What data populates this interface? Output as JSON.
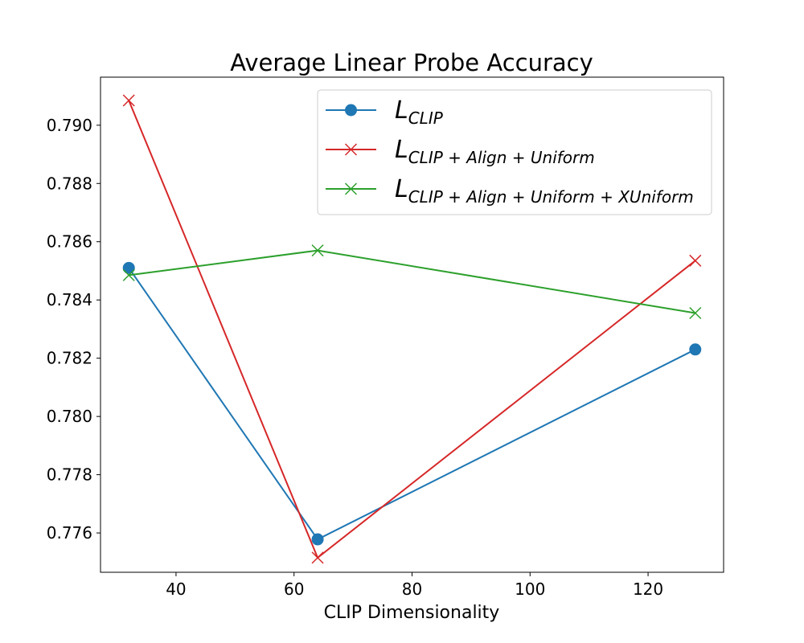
{
  "chart_data": {
    "type": "line",
    "title": "Average Linear Probe Accuracy",
    "xlabel": "CLIP Dimensionality",
    "ylabel": "",
    "xlim": [
      27.2,
      132.8
    ],
    "ylim": [
      0.77465,
      0.79165
    ],
    "xticks": [
      40,
      60,
      80,
      100,
      120
    ],
    "xtick_labels": [
      "40",
      "60",
      "80",
      "100",
      "120"
    ],
    "yticks": [
      0.776,
      0.778,
      0.78,
      0.782,
      0.784,
      0.786,
      0.788,
      0.79
    ],
    "ytick_labels": [
      "0.776",
      "0.778",
      "0.780",
      "0.782",
      "0.784",
      "0.786",
      "0.788",
      "0.790"
    ],
    "grid": false,
    "legend_position": "top-right",
    "x": [
      32,
      64,
      128
    ],
    "series": [
      {
        "name_main": "L",
        "name_sub": "CLIP",
        "marker": "circle",
        "color": "#1f77b4",
        "values": [
          0.7851,
          0.77578,
          0.7823
        ]
      },
      {
        "name_main": "L",
        "name_sub": "CLIP + Align + Uniform",
        "marker": "x",
        "color": "#d62728",
        "values": [
          0.79085,
          0.77515,
          0.78535
        ]
      },
      {
        "name_main": "L",
        "name_sub": "CLIP + Align + Uniform + XUniform",
        "marker": "x",
        "color": "#2ca02c",
        "values": [
          0.78485,
          0.7857,
          0.78355
        ]
      }
    ]
  }
}
